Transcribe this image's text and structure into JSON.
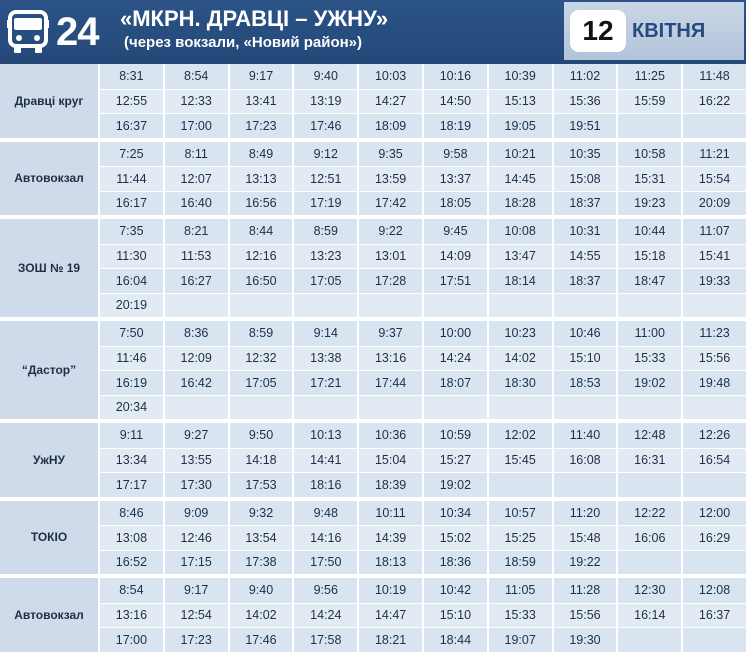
{
  "header": {
    "route_number": "24",
    "title": "«МКРН. ДРАВЦІ – УЖНУ»",
    "subtitle": "(через вокзали, «Новий район»)",
    "date_day": "12",
    "date_month": "КВІТНЯ",
    "bus_icon": "bus-icon"
  },
  "stops": [
    {
      "name": "Дравці круг",
      "times": [
        [
          "8:31",
          "8:54",
          "9:17",
          "9:40",
          "10:03",
          "10:16",
          "10:39",
          "11:02",
          "11:25",
          "11:48"
        ],
        [
          "12:55",
          "12:33",
          "13:41",
          "13:19",
          "14:27",
          "14:50",
          "15:13",
          "15:36",
          "15:59",
          "16:22"
        ],
        [
          "16:37",
          "17:00",
          "17:23",
          "17:46",
          "18:09",
          "18:19",
          "19:05",
          "19:51",
          "",
          ""
        ]
      ]
    },
    {
      "name": "Автовокзал",
      "times": [
        [
          "7:25",
          "8:11",
          "8:49",
          "9:12",
          "9:35",
          "9:58",
          "10:21",
          "10:35",
          "10:58",
          "11:21"
        ],
        [
          "11:44",
          "12:07",
          "13:13",
          "12:51",
          "13:59",
          "13:37",
          "14:45",
          "15:08",
          "15:31",
          "15:54"
        ],
        [
          "16:17",
          "16:40",
          "16:56",
          "17:19",
          "17:42",
          "18:05",
          "18:28",
          "18:37",
          "19:23",
          "20:09"
        ]
      ]
    },
    {
      "name": "ЗОШ № 19",
      "times": [
        [
          "7:35",
          "8:21",
          "8:44",
          "8:59",
          "9:22",
          "9:45",
          "10:08",
          "10:31",
          "10:44",
          "11:07"
        ],
        [
          "11:30",
          "11:53",
          "12:16",
          "13:23",
          "13:01",
          "14:09",
          "13:47",
          "14:55",
          "15:18",
          "15:41"
        ],
        [
          "16:04",
          "16:27",
          "16:50",
          "17:05",
          "17:28",
          "17:51",
          "18:14",
          "18:37",
          "18:47",
          "19:33"
        ],
        [
          "20:19",
          "",
          "",
          "",
          "",
          "",
          "",
          "",
          "",
          ""
        ]
      ]
    },
    {
      "name": "“Дастор”",
      "times": [
        [
          "7:50",
          "8:36",
          "8:59",
          "9:14",
          "9:37",
          "10:00",
          "10:23",
          "10:46",
          "11:00",
          "11:23"
        ],
        [
          "11:46",
          "12:09",
          "12:32",
          "13:38",
          "13:16",
          "14:24",
          "14:02",
          "15:10",
          "15:33",
          "15:56"
        ],
        [
          "16:19",
          "16:42",
          "17:05",
          "17:21",
          "17:44",
          "18:07",
          "18:30",
          "18:53",
          "19:02",
          "19:48"
        ],
        [
          "20:34",
          "",
          "",
          "",
          "",
          "",
          "",
          "",
          "",
          ""
        ]
      ]
    },
    {
      "name": "УжНУ",
      "times": [
        [
          "9:11",
          "9:27",
          "9:50",
          "10:13",
          "10:36",
          "10:59",
          "12:02",
          "11:40",
          "12:48",
          "12:26"
        ],
        [
          "13:34",
          "13:55",
          "14:18",
          "14:41",
          "15:04",
          "15:27",
          "15:45",
          "16:08",
          "16:31",
          "16:54"
        ],
        [
          "17:17",
          "17:30",
          "17:53",
          "18:16",
          "18:39",
          "19:02",
          "",
          "",
          "",
          ""
        ]
      ]
    },
    {
      "name": "ТОКІО",
      "times": [
        [
          "8:46",
          "9:09",
          "9:32",
          "9:48",
          "10:11",
          "10:34",
          "10:57",
          "11:20",
          "12:22",
          "12:00"
        ],
        [
          "13:08",
          "12:46",
          "13:54",
          "14:16",
          "14:39",
          "15:02",
          "15:25",
          "15:48",
          "16:06",
          "16:29"
        ],
        [
          "16:52",
          "17:15",
          "17:38",
          "17:50",
          "18:13",
          "18:36",
          "18:59",
          "19:22",
          "",
          ""
        ]
      ]
    },
    {
      "name": "Автовокзал",
      "times": [
        [
          "8:54",
          "9:17",
          "9:40",
          "9:56",
          "10:19",
          "10:42",
          "11:05",
          "11:28",
          "12:30",
          "12:08"
        ],
        [
          "13:16",
          "12:54",
          "14:02",
          "14:24",
          "14:47",
          "15:10",
          "15:33",
          "15:56",
          "16:14",
          "16:37"
        ],
        [
          "17:00",
          "17:23",
          "17:46",
          "17:58",
          "18:21",
          "18:44",
          "19:07",
          "19:30",
          "",
          ""
        ]
      ]
    }
  ]
}
